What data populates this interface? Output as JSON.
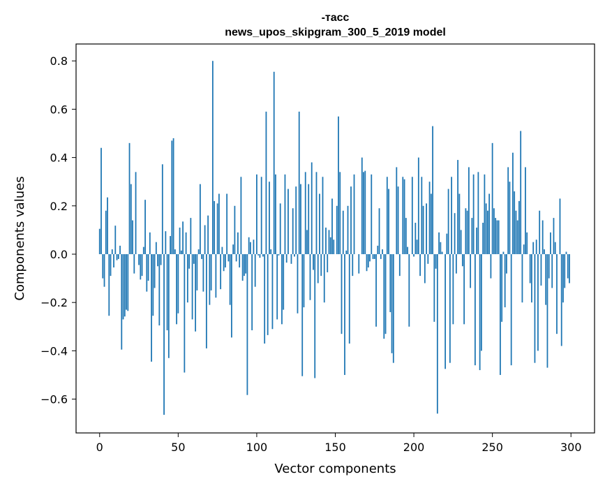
{
  "chart_data": {
    "type": "bar",
    "title": "-тасс\nnews_upos_skipgram_300_5_2019 model",
    "title_lines": [
      "-тасс",
      "news_upos_skipgram_300_5_2019 model"
    ],
    "xlabel": "Vector components",
    "ylabel": "Components values",
    "xlim": [
      -15,
      315
    ],
    "ylim": [
      -0.74,
      0.87
    ],
    "xticks": [
      0,
      50,
      100,
      150,
      200,
      250,
      300
    ],
    "xtick_labels": [
      "0",
      "50",
      "100",
      "150",
      "200",
      "250",
      "300"
    ],
    "yticks": [
      -0.6,
      -0.4,
      -0.2,
      0.0,
      0.2,
      0.4,
      0.6,
      0.8
    ],
    "ytick_labels": [
      "−0.6",
      "−0.4",
      "−0.2",
      "0.0",
      "0.2",
      "0.4",
      "0.6",
      "0.8"
    ],
    "grid": false,
    "color": "#1f77b4",
    "values": [
      0.105,
      0.44,
      -0.1,
      -0.135,
      0.18,
      0.235,
      -0.255,
      -0.09,
      0.02,
      -0.055,
      0.118,
      -0.025,
      -0.02,
      0.035,
      -0.395,
      -0.27,
      -0.258,
      -0.23,
      -0.235,
      0.46,
      0.29,
      0.14,
      -0.08,
      0.34,
      0.0,
      -0.045,
      -0.105,
      -0.09,
      0.03,
      0.225,
      -0.155,
      -0.11,
      0.09,
      -0.445,
      -0.255,
      -0.14,
      0.05,
      -0.05,
      -0.295,
      -0.045,
      0.372,
      -0.665,
      0.095,
      -0.315,
      -0.43,
      0.075,
      0.47,
      0.48,
      0.02,
      -0.29,
      -0.245,
      0.11,
      0.015,
      0.135,
      -0.49,
      0.09,
      -0.2,
      -0.06,
      0.15,
      -0.27,
      -0.04,
      -0.32,
      -0.15,
      0.02,
      0.29,
      -0.02,
      -0.155,
      0.12,
      -0.39,
      0.16,
      -0.21,
      -0.15,
      0.8,
      0.22,
      -0.18,
      0.21,
      0.25,
      -0.145,
      0.03,
      -0.07,
      -0.055,
      0.25,
      -0.03,
      -0.21,
      -0.345,
      0.04,
      0.2,
      -0.03,
      0.09,
      -0.055,
      0.32,
      -0.11,
      -0.09,
      -0.08,
      -0.583,
      0.07,
      0.05,
      -0.315,
      0.06,
      -0.135,
      0.33,
      -0.005,
      -0.015,
      0.32,
      -0.01,
      -0.37,
      0.59,
      -0.335,
      0.3,
      0.02,
      -0.31,
      0.755,
      0.33,
      -0.27,
      -0.005,
      0.21,
      -0.29,
      -0.23,
      0.33,
      -0.035,
      0.27,
      0.0,
      -0.04,
      0.19,
      -0.01,
      0.28,
      -0.245,
      0.59,
      0.29,
      -0.505,
      -0.22,
      0.34,
      0.1,
      0.29,
      -0.19,
      0.38,
      -0.065,
      -0.513,
      0.34,
      -0.12,
      0.25,
      -0.09,
      0.32,
      -0.2,
      0.11,
      -0.075,
      0.1,
      0.07,
      0.23,
      0.06,
      0.0,
      0.2,
      0.57,
      0.34,
      -0.33,
      0.18,
      -0.5,
      0.015,
      0.2,
      -0.37,
      0.28,
      -0.09,
      0.33,
      0.0,
      0.0,
      -0.08,
      0.0,
      0.4,
      0.34,
      0.345,
      -0.07,
      -0.055,
      -0.03,
      0.33,
      -0.02,
      -0.02,
      -0.3,
      0.035,
      0.19,
      -0.02,
      0.02,
      -0.35,
      -0.33,
      0.32,
      0.27,
      -0.24,
      -0.41,
      -0.45,
      0.0,
      0.36,
      0.28,
      -0.09,
      0.0,
      0.32,
      0.31,
      0.15,
      0.03,
      -0.3,
      0.0,
      0.32,
      -0.01,
      0.13,
      0.06,
      0.4,
      -0.09,
      0.32,
      0.2,
      -0.12,
      0.21,
      -0.04,
      0.3,
      0.25,
      0.53,
      -0.28,
      -0.06,
      -0.66,
      0.09,
      0.05,
      0.01,
      0.0,
      -0.475,
      0.085,
      0.27,
      -0.45,
      0.32,
      -0.29,
      0.17,
      -0.08,
      0.39,
      0.25,
      0.1,
      -0.05,
      -0.29,
      0.19,
      0.18,
      0.36,
      -0.14,
      0.15,
      0.33,
      -0.46,
      0.11,
      0.34,
      -0.48,
      -0.4,
      0.13,
      0.33,
      0.21,
      0.18,
      0.25,
      -0.1,
      0.46,
      0.19,
      0.15,
      0.14,
      0.14,
      -0.5,
      -0.28,
      0.01,
      -0.22,
      -0.08,
      0.36,
      0.3,
      -0.46,
      0.42,
      0.26,
      0.18,
      0.14,
      0.22,
      0.51,
      -0.2,
      0.04,
      0.36,
      0.09,
      0.0,
      -0.12,
      -0.2,
      0.05,
      -0.45,
      0.06,
      -0.4,
      0.18,
      -0.13,
      0.14,
      0.02,
      -0.21,
      -0.47,
      -0.1,
      0.09,
      -0.14,
      0.15,
      0.05,
      -0.33,
      0.0,
      0.23,
      -0.38,
      -0.2,
      -0.14,
      0.01,
      -0.1,
      -0.12
    ]
  }
}
